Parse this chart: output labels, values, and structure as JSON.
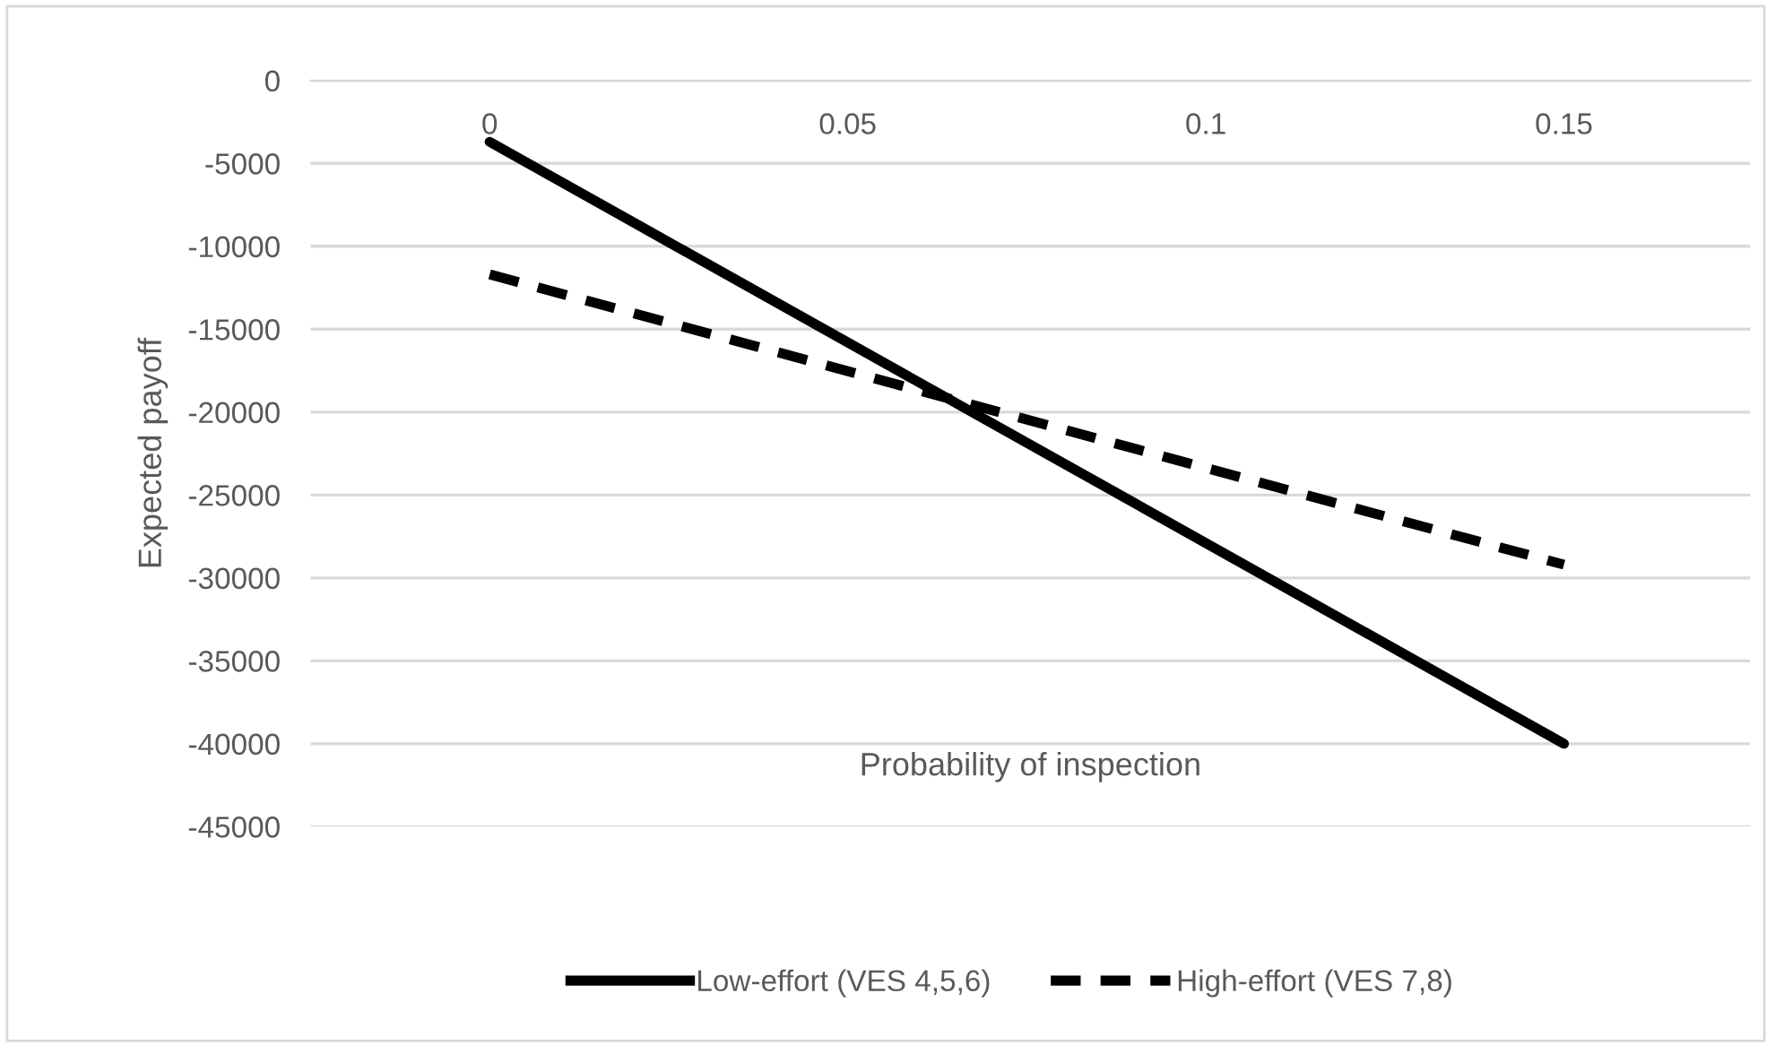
{
  "chart_data": {
    "type": "line",
    "xlabel": "Probability of inspection",
    "ylabel": "Expected payoff",
    "x": [
      0,
      0.15
    ],
    "series": [
      {
        "name": "Low-effort (VES 4,5,6)",
        "color": "#000000",
        "line_style": "solid",
        "values": [
          -3700,
          -40000
        ]
      },
      {
        "name": "High-effort (VES 7,8)",
        "color": "#000000",
        "line_style": "dashed",
        "values": [
          -11700,
          -29200
        ]
      }
    ],
    "xlim": [
      -0.025,
      0.176
    ],
    "xticks": [
      0,
      0.05,
      0.1,
      0.15
    ],
    "ylim": [
      -45000,
      0
    ],
    "yticks": [
      0,
      -5000,
      -10000,
      -15000,
      -20000,
      -25000,
      -30000,
      -35000,
      -40000,
      -45000
    ],
    "grid": "y",
    "legend": "bottom",
    "marker": "none"
  }
}
